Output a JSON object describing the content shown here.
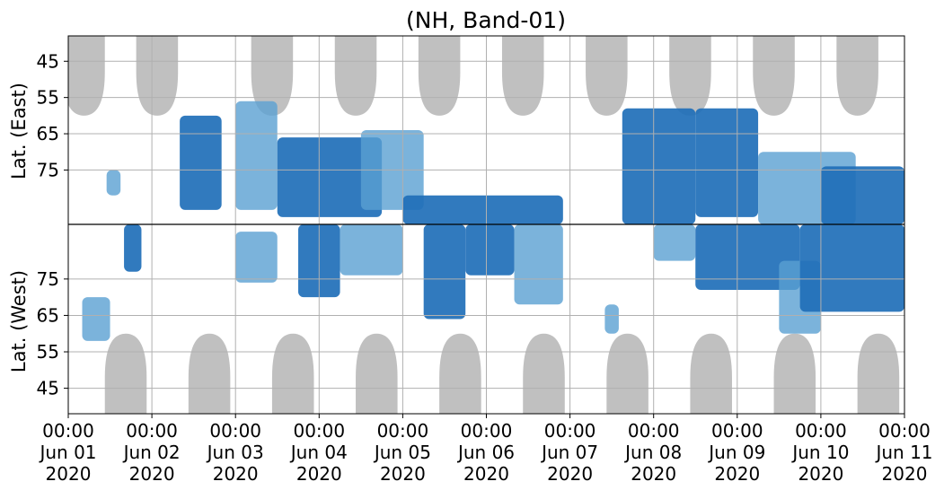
{
  "chart_data": {
    "type": "heatmap",
    "title": "(NH, Band-01)",
    "ylabel_east": "Lat. (East)",
    "ylabel_west": "Lat. (West)",
    "x_range": [
      "2020-06-01T00:00",
      "2020-06-11T00:00"
    ],
    "x_ticks": [
      {
        "time": "00:00",
        "date": "Jun 01",
        "year": "2020"
      },
      {
        "time": "00:00",
        "date": "Jun 02",
        "year": "2020"
      },
      {
        "time": "00:00",
        "date": "Jun 03",
        "year": "2020"
      },
      {
        "time": "00:00",
        "date": "Jun 04",
        "year": "2020"
      },
      {
        "time": "00:00",
        "date": "Jun 05",
        "year": "2020"
      },
      {
        "time": "00:00",
        "date": "Jun 06",
        "year": "2020"
      },
      {
        "time": "00:00",
        "date": "Jun 07",
        "year": "2020"
      },
      {
        "time": "00:00",
        "date": "Jun 08",
        "year": "2020"
      },
      {
        "time": "00:00",
        "date": "Jun 09",
        "year": "2020"
      },
      {
        "time": "00:00",
        "date": "Jun 10",
        "year": "2020"
      },
      {
        "time": "00:00",
        "date": "Jun 11",
        "year": "2020"
      }
    ],
    "east_ticks": [
      "45",
      "55",
      "65",
      "75"
    ],
    "west_ticks": [
      "75",
      "65",
      "55",
      "45"
    ],
    "lat_range": [
      38,
      90
    ],
    "grid": true,
    "colors": {
      "strong": "#1f6fb8",
      "weak": "#5aa0d2",
      "dark_mask": "#c0c0c0",
      "grid": "#b0b0b0",
      "divider": "#000000"
    },
    "daylight_gaps": {
      "east_centers": [
        "2020-06-01T04:30",
        "2020-06-02T01:30",
        "2020-06-03T10:30",
        "2020-06-04T10:30",
        "2020-06-05T10:30",
        "2020-06-06T10:30",
        "2020-06-07T10:30",
        "2020-06-08T10:30",
        "2020-06-09T10:30",
        "2020-06-10T10:30"
      ],
      "west_centers": [
        "2020-06-01T16:30",
        "2020-06-02T16:30",
        "2020-06-03T16:30",
        "2020-06-04T16:30",
        "2020-06-05T16:30",
        "2020-06-06T16:30",
        "2020-06-07T16:30",
        "2020-06-08T16:30",
        "2020-06-09T16:30",
        "2020-06-10T16:30"
      ],
      "min_lat": 60
    },
    "activity": [
      {
        "hemisphere": "east",
        "from": "2020-06-01T11:00",
        "to": "2020-06-01T15:00",
        "lat_min": 75,
        "lat_max": 82,
        "level": "weak"
      },
      {
        "hemisphere": "east",
        "from": "2020-06-02T08:00",
        "to": "2020-06-02T20:00",
        "lat_min": 60,
        "lat_max": 86,
        "level": "strong"
      },
      {
        "hemisphere": "east",
        "from": "2020-06-03T00:00",
        "to": "2020-06-03T12:00",
        "lat_min": 56,
        "lat_max": 86,
        "level": "weak"
      },
      {
        "hemisphere": "east",
        "from": "2020-06-03T12:00",
        "to": "2020-06-04T18:00",
        "lat_min": 66,
        "lat_max": 88,
        "level": "strong"
      },
      {
        "hemisphere": "east",
        "from": "2020-06-04T12:00",
        "to": "2020-06-05T06:00",
        "lat_min": 64,
        "lat_max": 86,
        "level": "weak"
      },
      {
        "hemisphere": "east",
        "from": "2020-06-05T00:00",
        "to": "2020-06-06T22:00",
        "lat_min": 82,
        "lat_max": 90,
        "level": "strong"
      },
      {
        "hemisphere": "east",
        "from": "2020-06-07T15:00",
        "to": "2020-06-08T12:00",
        "lat_min": 58,
        "lat_max": 90,
        "level": "strong"
      },
      {
        "hemisphere": "east",
        "from": "2020-06-08T12:00",
        "to": "2020-06-09T06:00",
        "lat_min": 58,
        "lat_max": 88,
        "level": "strong"
      },
      {
        "hemisphere": "east",
        "from": "2020-06-09T06:00",
        "to": "2020-06-10T10:00",
        "lat_min": 70,
        "lat_max": 90,
        "level": "weak"
      },
      {
        "hemisphere": "east",
        "from": "2020-06-10T00:00",
        "to": "2020-06-11T00:00",
        "lat_min": 74,
        "lat_max": 90,
        "level": "strong"
      },
      {
        "hemisphere": "west",
        "from": "2020-06-01T04:00",
        "to": "2020-06-01T12:00",
        "lat_min": 58,
        "lat_max": 70,
        "level": "weak"
      },
      {
        "hemisphere": "west",
        "from": "2020-06-01T16:00",
        "to": "2020-06-01T21:00",
        "lat_min": 77,
        "lat_max": 90,
        "level": "strong"
      },
      {
        "hemisphere": "west",
        "from": "2020-06-03T00:00",
        "to": "2020-06-03T12:00",
        "lat_min": 74,
        "lat_max": 88,
        "level": "weak"
      },
      {
        "hemisphere": "west",
        "from": "2020-06-03T18:00",
        "to": "2020-06-04T06:00",
        "lat_min": 70,
        "lat_max": 90,
        "level": "strong"
      },
      {
        "hemisphere": "west",
        "from": "2020-06-04T06:00",
        "to": "2020-06-05T00:00",
        "lat_min": 76,
        "lat_max": 90,
        "level": "weak"
      },
      {
        "hemisphere": "west",
        "from": "2020-06-05T06:00",
        "to": "2020-06-05T18:00",
        "lat_min": 64,
        "lat_max": 90,
        "level": "strong"
      },
      {
        "hemisphere": "west",
        "from": "2020-06-05T18:00",
        "to": "2020-06-06T08:00",
        "lat_min": 76,
        "lat_max": 90,
        "level": "strong"
      },
      {
        "hemisphere": "west",
        "from": "2020-06-06T08:00",
        "to": "2020-06-06T22:00",
        "lat_min": 68,
        "lat_max": 90,
        "level": "weak"
      },
      {
        "hemisphere": "west",
        "from": "2020-06-07T10:00",
        "to": "2020-06-07T14:00",
        "lat_min": 60,
        "lat_max": 68,
        "level": "weak"
      },
      {
        "hemisphere": "west",
        "from": "2020-06-08T00:00",
        "to": "2020-06-08T12:00",
        "lat_min": 80,
        "lat_max": 90,
        "level": "weak"
      },
      {
        "hemisphere": "west",
        "from": "2020-06-08T12:00",
        "to": "2020-06-09T18:00",
        "lat_min": 72,
        "lat_max": 90,
        "level": "strong"
      },
      {
        "hemisphere": "west",
        "from": "2020-06-09T12:00",
        "to": "2020-06-10T00:00",
        "lat_min": 60,
        "lat_max": 80,
        "level": "weak"
      },
      {
        "hemisphere": "west",
        "from": "2020-06-09T18:00",
        "to": "2020-06-11T00:00",
        "lat_min": 66,
        "lat_max": 90,
        "level": "strong"
      }
    ]
  }
}
